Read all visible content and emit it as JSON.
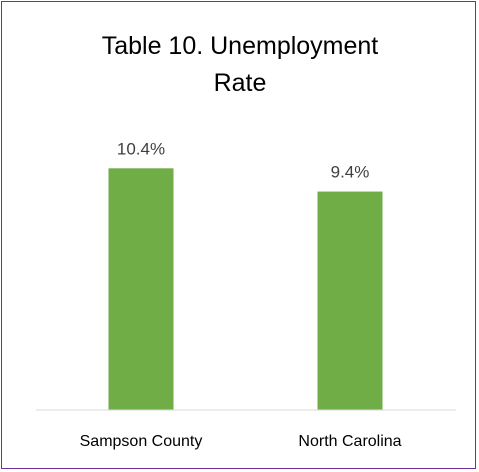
{
  "chart_data": {
    "type": "bar",
    "title": "Table 10.  Unemployment Rate",
    "xlabel": "",
    "ylabel": "",
    "categories": [
      "Sampson County",
      "North Carolina"
    ],
    "values": [
      10.4,
      9.4
    ],
    "data_labels": [
      "10.4%",
      "9.4%"
    ],
    "ylim": [
      0,
      11.36
    ],
    "grid": false,
    "legend": "none",
    "colors": {
      "bar": "#70ad47",
      "axis": "#d9d9d9",
      "border": "#7030a0"
    }
  }
}
